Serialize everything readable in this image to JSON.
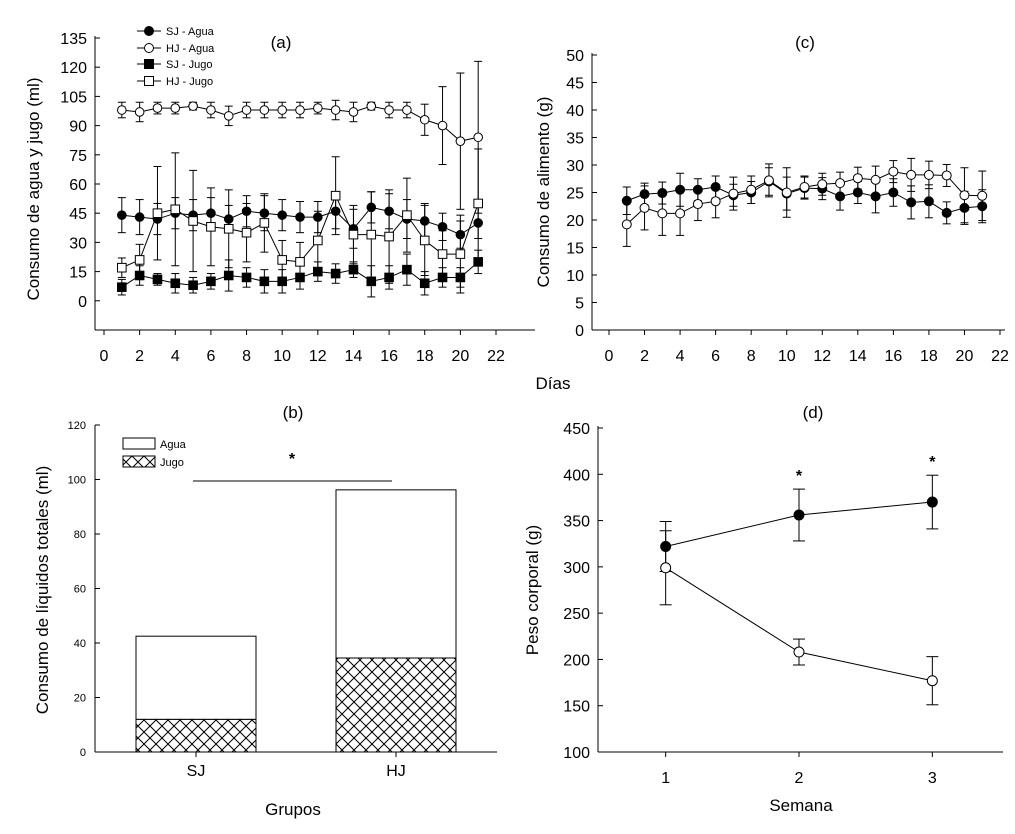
{
  "figure": {
    "shared_xlabel_top": "Días"
  },
  "chart_data": [
    {
      "id": "a",
      "panel_label": "(a)",
      "type": "line",
      "ylabel": "Consumo de agua y jugo (ml)",
      "xlabel": "",
      "xlim": [
        0,
        22
      ],
      "ylim": [
        -15,
        135
      ],
      "xticks": [
        0,
        2,
        4,
        6,
        8,
        10,
        12,
        14,
        16,
        18,
        20,
        22
      ],
      "yticks": [
        0,
        15,
        30,
        45,
        60,
        75,
        90,
        105,
        120,
        135
      ],
      "x": [
        1,
        2,
        3,
        4,
        5,
        6,
        7,
        8,
        9,
        10,
        11,
        12,
        13,
        14,
        15,
        16,
        17,
        18,
        19,
        20,
        21
      ],
      "legend": [
        "SJ - Agua",
        "HJ - Agua",
        "SJ - Jugo",
        "HJ - Jugo"
      ],
      "series": [
        {
          "name": "SJ - Agua",
          "marker": "circle",
          "filled": true,
          "values": [
            44,
            43,
            42,
            45,
            44,
            45,
            42,
            46,
            45,
            44,
            43,
            43,
            46,
            37,
            48,
            46,
            42,
            41,
            38,
            34,
            40
          ],
          "errors": [
            9,
            9,
            8,
            8,
            8,
            8,
            7,
            8,
            9,
            8,
            8,
            8,
            9,
            10,
            8,
            9,
            10,
            9,
            7,
            7,
            8
          ]
        },
        {
          "name": "HJ - Agua",
          "marker": "circle",
          "filled": false,
          "values": [
            98,
            97,
            99,
            99,
            100,
            98,
            95,
            98,
            98,
            98,
            98,
            99,
            98,
            97,
            100,
            98,
            98,
            93,
            90,
            82,
            84
          ],
          "errors": [
            4,
            5,
            3,
            3,
            2,
            4,
            5,
            4,
            4,
            4,
            4,
            3,
            5,
            5,
            2,
            4,
            4,
            8,
            20,
            35,
            39
          ]
        },
        {
          "name": "SJ - Jugo",
          "marker": "square",
          "filled": true,
          "values": [
            7,
            13,
            11,
            9,
            8,
            10,
            13,
            12,
            10,
            10,
            12,
            15,
            14,
            16,
            10,
            12,
            16,
            9,
            12,
            12,
            20
          ],
          "errors": [
            4,
            5,
            3,
            5,
            4,
            4,
            8,
            5,
            6,
            6,
            6,
            5,
            5,
            4,
            8,
            6,
            8,
            6,
            5,
            5,
            6
          ]
        },
        {
          "name": "HJ - Jugo",
          "marker": "square",
          "filled": false,
          "values": [
            17,
            21,
            45,
            47,
            41,
            38,
            37,
            35,
            40,
            21,
            20,
            31,
            54,
            34,
            34,
            33,
            44,
            31,
            24,
            24,
            50
          ],
          "errors": [
            5,
            8,
            24,
            29,
            26,
            20,
            20,
            15,
            15,
            10,
            10,
            15,
            20,
            15,
            22,
            24,
            19,
            18,
            12,
            20,
            28
          ]
        }
      ]
    },
    {
      "id": "c",
      "panel_label": "(c)",
      "type": "line",
      "ylabel": "Consumo de alimento (g)",
      "xlabel": "",
      "xlim": [
        0,
        22
      ],
      "ylim": [
        0,
        50
      ],
      "xticks": [
        0,
        2,
        4,
        6,
        8,
        10,
        12,
        14,
        16,
        18,
        20,
        22
      ],
      "yticks": [
        0,
        5,
        10,
        15,
        20,
        25,
        30,
        35,
        40,
        45,
        50
      ],
      "x": [
        1,
        2,
        3,
        4,
        5,
        6,
        7,
        8,
        9,
        10,
        11,
        12,
        13,
        14,
        15,
        16,
        17,
        18,
        19,
        20,
        21
      ],
      "series": [
        {
          "name": "SJ",
          "marker": "circle",
          "filled": true,
          "values": [
            23.5,
            24.7,
            24.9,
            25.5,
            25.5,
            26,
            24.5,
            25,
            27,
            24.8,
            25.8,
            25.7,
            24.3,
            25,
            24.3,
            25,
            23.2,
            23.4,
            21.3,
            22.2,
            22.5
          ],
          "errors": [
            2.5,
            2,
            2,
            3,
            2,
            2,
            2,
            2,
            2.5,
            3,
            2,
            2,
            2.5,
            2,
            3,
            2.5,
            3,
            3,
            2,
            3,
            3
          ]
        },
        {
          "name": "HJ",
          "marker": "circle",
          "filled": false,
          "values": [
            19.2,
            22.2,
            21.2,
            21.2,
            22.9,
            23.4,
            24.8,
            25.5,
            27.2,
            25,
            26,
            26.5,
            26.7,
            27.6,
            27.3,
            28.8,
            28.2,
            28.2,
            28.1,
            24.5,
            24.4
          ],
          "errors": [
            4,
            4,
            4,
            4,
            3,
            3,
            3,
            2.5,
            3,
            4.5,
            2,
            2,
            2,
            2,
            2.5,
            2,
            3,
            2.5,
            2,
            5,
            4.5
          ]
        }
      ]
    },
    {
      "id": "b",
      "panel_label": "(b)",
      "type": "bar",
      "stacked": true,
      "ylabel": "Consumo de líquidos totales (ml)",
      "xlabel": "Grupos",
      "ylim": [
        0,
        120
      ],
      "yticks": [
        0,
        20,
        40,
        60,
        80,
        100,
        120
      ],
      "categories": [
        "SJ",
        "HJ"
      ],
      "legend": [
        "Agua",
        "Jugo"
      ],
      "series": [
        {
          "name": "Jugo",
          "pattern": "crosshatch",
          "values": [
            12,
            34.5
          ]
        },
        {
          "name": "Agua",
          "pattern": "none",
          "values": [
            30.5,
            61.7
          ]
        }
      ],
      "annotation": "*"
    },
    {
      "id": "d",
      "panel_label": "(d)",
      "type": "line",
      "ylabel": "Peso corporal (g)",
      "xlabel": "Semana",
      "xlim": [
        0.5,
        3.5
      ],
      "ylim": [
        100,
        450
      ],
      "xticks": [
        1,
        2,
        3
      ],
      "yticks": [
        100,
        150,
        200,
        250,
        300,
        350,
        400,
        450
      ],
      "x": [
        1,
        2,
        3
      ],
      "series": [
        {
          "name": "SJ",
          "marker": "circle",
          "filled": true,
          "values": [
            322,
            356,
            370
          ],
          "errors": [
            27,
            28,
            29
          ]
        },
        {
          "name": "HJ",
          "marker": "circle",
          "filled": false,
          "values": [
            299,
            208,
            177
          ],
          "errors": [
            40,
            14,
            26
          ]
        }
      ],
      "annotations": [
        "*",
        "*"
      ]
    }
  ]
}
